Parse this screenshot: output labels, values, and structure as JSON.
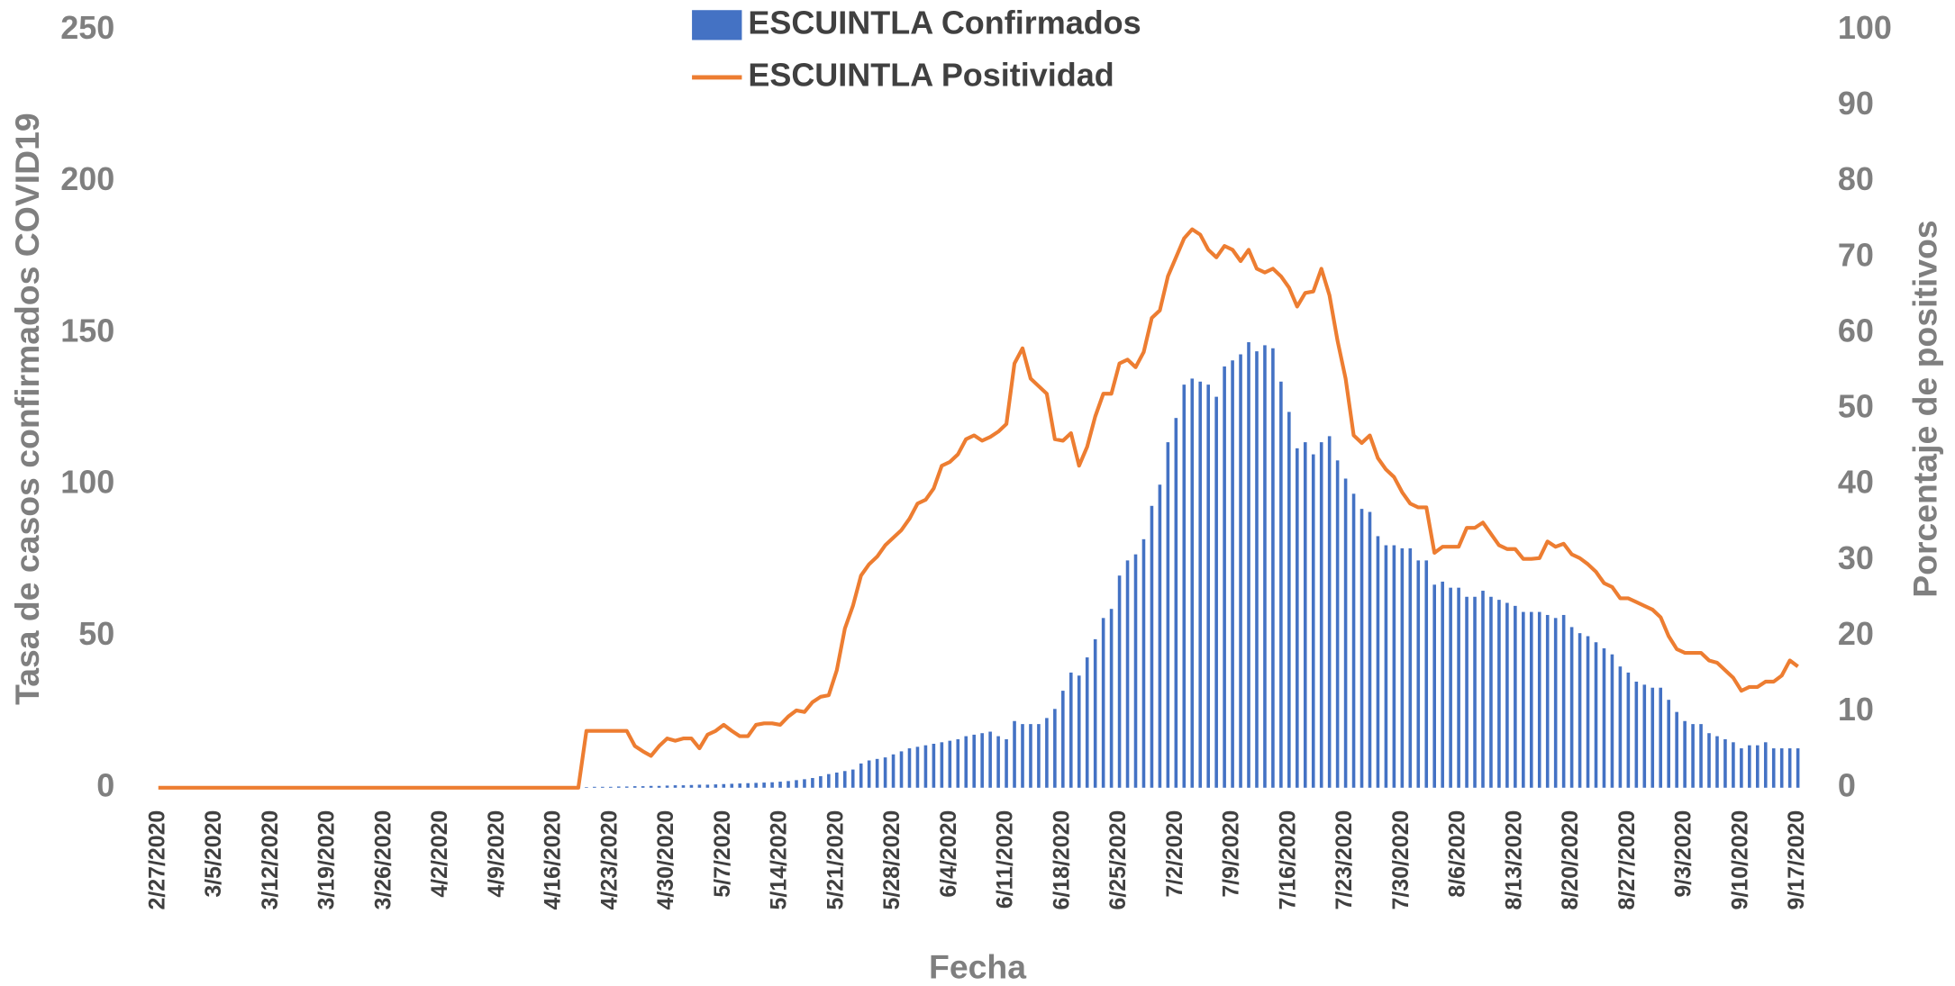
{
  "chart_data": {
    "type": "bar_line",
    "y_label": "Tasa de casos confirmados COVID19",
    "y2_label": "Porcentaje de positivos",
    "x_label": "Fecha",
    "categories": [
      "2/27/2020",
      null,
      null,
      null,
      null,
      null,
      null,
      "3/5/2020",
      null,
      null,
      null,
      null,
      null,
      null,
      "3/12/2020",
      null,
      null,
      null,
      null,
      null,
      null,
      "3/19/2020",
      null,
      null,
      null,
      null,
      null,
      null,
      "3/26/2020",
      null,
      null,
      null,
      null,
      null,
      null,
      "4/2/2020",
      null,
      null,
      null,
      null,
      null,
      null,
      "4/9/2020",
      null,
      null,
      null,
      null,
      null,
      null,
      "4/16/2020",
      null,
      null,
      null,
      null,
      null,
      null,
      "4/23/2020",
      null,
      null,
      null,
      null,
      null,
      null,
      "4/30/2020",
      null,
      null,
      null,
      null,
      null,
      null,
      "5/7/2020",
      null,
      null,
      null,
      null,
      null,
      null,
      "5/14/2020",
      null,
      null,
      null,
      null,
      null,
      null,
      "5/21/2020",
      null,
      null,
      null,
      null,
      null,
      null,
      "5/28/2020",
      null,
      null,
      null,
      null,
      null,
      null,
      "6/4/2020",
      null,
      null,
      null,
      null,
      null,
      null,
      "6/11/2020",
      null,
      null,
      null,
      null,
      null,
      null,
      "6/18/2020",
      null,
      null,
      null,
      null,
      null,
      null,
      "6/25/2020",
      null,
      null,
      null,
      null,
      null,
      null,
      "7/2/2020",
      null,
      null,
      null,
      null,
      null,
      null,
      "7/9/2020",
      null,
      null,
      null,
      null,
      null,
      null,
      "7/16/2020",
      null,
      null,
      null,
      null,
      null,
      null,
      "7/23/2020",
      null,
      null,
      null,
      null,
      null,
      null,
      "7/30/2020",
      null,
      null,
      null,
      null,
      null,
      null,
      "8/6/2020",
      null,
      null,
      null,
      null,
      null,
      null,
      "8/13/2020",
      null,
      null,
      null,
      null,
      null,
      null,
      "8/20/2020",
      null,
      null,
      null,
      null,
      null,
      null,
      "8/27/2020",
      null,
      null,
      null,
      null,
      null,
      null,
      "9/3/2020",
      null,
      null,
      null,
      null,
      null,
      null,
      "9/10/2020",
      null,
      null,
      null,
      null,
      null,
      null,
      "9/17/2020"
    ],
    "series": [
      {
        "name": "ESCUINTLA Confirmados",
        "type": "bar",
        "color": "#4472c4",
        "axis": "y",
        "values": [
          0,
          0,
          0,
          0,
          0,
          0,
          0,
          0,
          0,
          0,
          0,
          0,
          0,
          0,
          0,
          0,
          0,
          0,
          0,
          0,
          0,
          0,
          0,
          0,
          0,
          0,
          0,
          0,
          0,
          0,
          0,
          0,
          0,
          0,
          0,
          0,
          0,
          0,
          0,
          0,
          0,
          0,
          0,
          0,
          0,
          0,
          0,
          0,
          0,
          0,
          0,
          0,
          0.2,
          0.2,
          0.3,
          0.3,
          0.3,
          0.4,
          0.4,
          0.5,
          0.5,
          0.6,
          0.6,
          0.7,
          0.8,
          0.8,
          0.9,
          1,
          1,
          1.1,
          1.2,
          1.3,
          1.4,
          1.5,
          1.6,
          1.7,
          1.8,
          2,
          2.2,
          2.5,
          2.8,
          3.2,
          3.8,
          4.5,
          5,
          5.5,
          6,
          8,
          9,
          9.5,
          10,
          11,
          12,
          13,
          13.5,
          14,
          14.5,
          15,
          15.5,
          16,
          17,
          17.5,
          18,
          18.5,
          17,
          16,
          22,
          21,
          21,
          21,
          23,
          26,
          32,
          38,
          37,
          43,
          49,
          56,
          59,
          70,
          75,
          77,
          82,
          93,
          100,
          114,
          122,
          133,
          135,
          134,
          133,
          129,
          139,
          141,
          143,
          147,
          144,
          146,
          145,
          134,
          124,
          112,
          114,
          110,
          114,
          116,
          108,
          102,
          97,
          92,
          91,
          83,
          80,
          80,
          79,
          79,
          75,
          75,
          67,
          68,
          66,
          66,
          63,
          63,
          65,
          63,
          62,
          61,
          60,
          58,
          58,
          58,
          57,
          56,
          57,
          53,
          51,
          50,
          48,
          46,
          44,
          40,
          38,
          35,
          34,
          33,
          33,
          29,
          25,
          22,
          21,
          21,
          18,
          17,
          16,
          15,
          13,
          14,
          14,
          15,
          13,
          13,
          13,
          13
        ]
      },
      {
        "name": "ESCUINTLA Positividad",
        "type": "line",
        "color": "#ed7d31",
        "axis": "y2",
        "values": [
          0,
          0,
          0,
          0,
          0,
          0,
          0,
          0,
          0,
          0,
          0,
          0,
          0,
          0,
          0,
          0,
          0,
          0,
          0,
          0,
          0,
          0,
          0,
          0,
          0,
          0,
          0,
          0,
          0,
          0,
          0,
          0,
          0,
          0,
          0,
          0,
          0,
          0,
          0,
          0,
          0,
          0,
          0,
          0,
          0,
          0,
          0,
          0,
          0,
          0,
          0,
          0,
          0,
          7.5,
          7.5,
          7.5,
          7.5,
          7.5,
          7.5,
          5.5,
          4.8,
          4.2,
          5.5,
          6.5,
          6.2,
          6.5,
          6.5,
          5.2,
          7,
          7.5,
          8.3,
          7.5,
          6.8,
          6.8,
          8.3,
          8.5,
          8.5,
          8.3,
          9.4,
          10.2,
          10,
          11.3,
          12,
          12.2,
          15.5,
          21,
          24,
          28,
          29.5,
          30.5,
          32,
          33,
          34,
          35.5,
          37.5,
          38,
          39.5,
          42.5,
          43,
          44,
          46,
          46.5,
          45.8,
          46.3,
          47,
          48,
          56,
          58,
          54,
          53,
          52,
          46,
          45.8,
          46.8,
          42.5,
          45,
          49,
          52,
          52,
          56,
          56.5,
          55.5,
          57.5,
          62,
          63,
          67.5,
          70,
          72.5,
          73.7,
          73,
          71,
          70,
          71.5,
          71,
          69.5,
          71,
          68.5,
          68,
          68.5,
          67.5,
          66,
          63.5,
          65.3,
          65.5,
          68.5,
          65,
          59,
          54,
          46.5,
          45.5,
          46.5,
          43.5,
          42,
          41,
          39,
          37.5,
          37,
          37,
          31,
          31.8,
          31.8,
          31.8,
          34.3,
          34.3,
          35,
          33.5,
          32,
          31.5,
          31.5,
          30.2,
          30.2,
          30.3,
          32.5,
          31.8,
          32.2,
          30.8,
          30.3,
          29.5,
          28.5,
          27,
          26.5,
          25,
          25,
          24.5,
          24,
          23.5,
          22.5,
          20,
          18.3,
          17.8,
          17.8,
          17.8,
          16.8,
          16.5,
          15.5,
          14.5,
          12.8,
          13.3,
          13.3,
          14,
          14,
          14.8,
          16.8,
          16
        ]
      }
    ],
    "ylim": [
      0,
      250
    ],
    "yticks": [
      0,
      50,
      100,
      150,
      200,
      250
    ],
    "y2lim": [
      0,
      100
    ],
    "y2ticks": [
      0,
      10,
      20,
      30,
      40,
      50,
      60,
      70,
      80,
      90,
      100
    ],
    "grid": false,
    "legend": "top"
  }
}
